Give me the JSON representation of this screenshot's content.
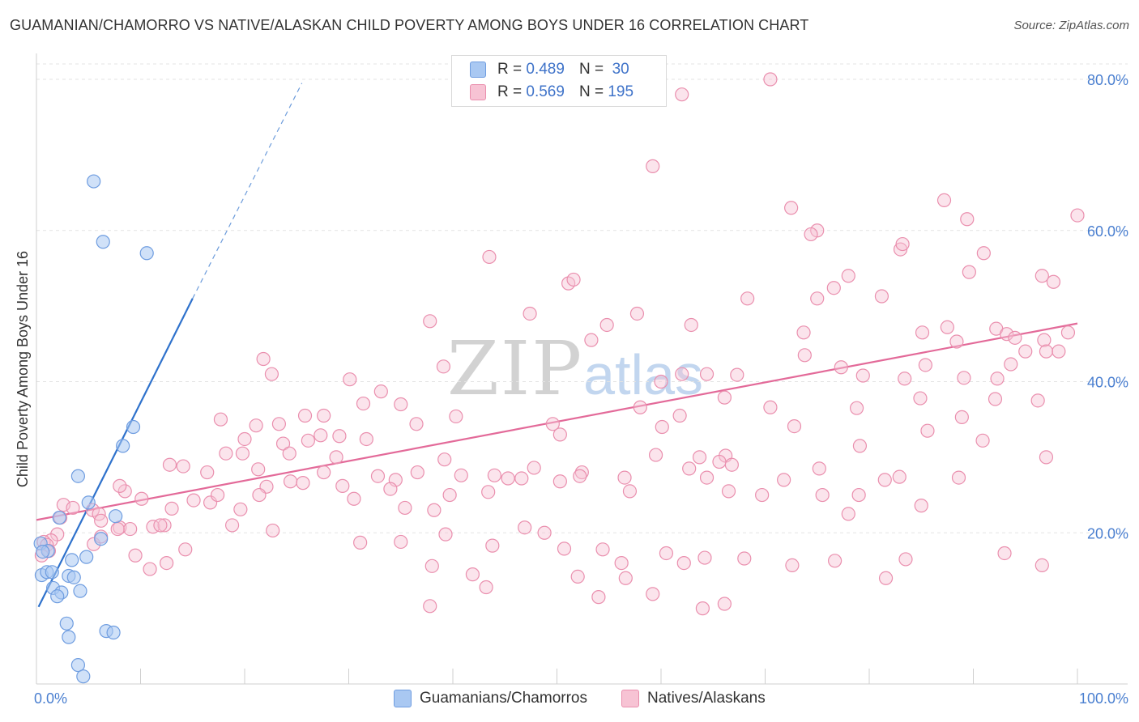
{
  "title": "GUAMANIAN/CHAMORRO VS NATIVE/ALASKAN CHILD POVERTY AMONG BOYS UNDER 16 CORRELATION CHART",
  "source": "Source: ZipAtlas.com",
  "watermark": {
    "zip": "ZIP",
    "atlas": "atlas"
  },
  "legend": {
    "rows": [
      {
        "r_label": "R =",
        "r_value": "0.489",
        "n_label": "N =",
        "n_value": "30"
      },
      {
        "r_label": "R =",
        "r_value": "0.569",
        "n_label": "N =",
        "n_value": "195"
      }
    ]
  },
  "bottom_legend": {
    "series_a": "Guamanians/Chamorros",
    "series_b": "Natives/Alaskans"
  },
  "colors": {
    "blue_fill": "#a9c8f2",
    "blue_stroke": "#6f9de0",
    "blue_line": "#2f72cc",
    "pink_fill": "#f7c3d4",
    "pink_stroke": "#ea8fae",
    "pink_line": "#e36a99",
    "grid": "#e3e3e3",
    "tick_text": "#4a7fd0"
  },
  "chart_data": {
    "type": "scatter",
    "title": "GUAMANIAN/CHAMORRO VS NATIVE/ALASKAN CHILD POVERTY AMONG BOYS UNDER 16 CORRELATION CHART",
    "xlabel": "",
    "ylabel": "Child Poverty Among Boys Under 16",
    "xlim": [
      0,
      100
    ],
    "ylim": [
      0,
      83
    ],
    "y_ticks": [
      20,
      40,
      60,
      80
    ],
    "y_tick_labels": [
      "20.0%",
      "40.0%",
      "60.0%",
      "80.0%"
    ],
    "x_tick_labels": [
      "0.0%",
      "100.0%"
    ],
    "x_minor_ticks": [
      0,
      10,
      20,
      30,
      40,
      50,
      60,
      70,
      80,
      90,
      100
    ],
    "grid": true,
    "series": [
      {
        "name": "Guamanians/Chamorros",
        "r": 0.489,
        "n": 30,
        "trend": {
          "x0": 0.2,
          "y0": 10.2,
          "x1": 15.0,
          "y1": 51.0,
          "dash_to_x": 25.5,
          "dash_to_y": 79.5
        },
        "points": [
          [
            5.5,
            66.5
          ],
          [
            6.4,
            58.5
          ],
          [
            10.6,
            57.0
          ],
          [
            9.3,
            34.0
          ],
          [
            8.3,
            31.5
          ],
          [
            4.0,
            27.5
          ],
          [
            5.0,
            24.0
          ],
          [
            2.2,
            22.0
          ],
          [
            7.6,
            22.2
          ],
          [
            6.2,
            19.2
          ],
          [
            0.4,
            18.6
          ],
          [
            1.1,
            17.6
          ],
          [
            3.4,
            16.4
          ],
          [
            4.8,
            16.8
          ],
          [
            0.5,
            14.4
          ],
          [
            1.0,
            14.8
          ],
          [
            1.5,
            14.8
          ],
          [
            3.1,
            14.3
          ],
          [
            3.6,
            14.1
          ],
          [
            1.6,
            12.7
          ],
          [
            2.4,
            12.1
          ],
          [
            2.0,
            11.6
          ],
          [
            4.2,
            12.3
          ],
          [
            2.9,
            8.0
          ],
          [
            6.7,
            7.0
          ],
          [
            7.4,
            6.8
          ],
          [
            3.1,
            6.2
          ],
          [
            4.0,
            2.5
          ],
          [
            4.5,
            1.0
          ],
          [
            0.6,
            17.5
          ]
        ]
      },
      {
        "name": "Natives/Alaskans",
        "r": 0.569,
        "n": 195,
        "trend": {
          "x0": 0.0,
          "y0": 21.7,
          "x1": 100.0,
          "y1": 47.7
        },
        "points": [
          [
            70.5,
            80.0
          ],
          [
            62.0,
            78.0
          ],
          [
            59.2,
            68.5
          ],
          [
            87.2,
            64.0
          ],
          [
            72.5,
            63.0
          ],
          [
            89.4,
            61.5
          ],
          [
            100.0,
            62.0
          ],
          [
            75.0,
            60.0
          ],
          [
            74.4,
            59.5
          ],
          [
            83.0,
            57.5
          ],
          [
            83.2,
            58.2
          ],
          [
            91.0,
            57.0
          ],
          [
            43.5,
            56.5
          ],
          [
            89.6,
            54.5
          ],
          [
            96.6,
            54.0
          ],
          [
            78.0,
            54.0
          ],
          [
            51.1,
            53.0
          ],
          [
            51.6,
            53.5
          ],
          [
            97.7,
            53.2
          ],
          [
            76.6,
            52.4
          ],
          [
            68.3,
            51.0
          ],
          [
            75.0,
            51.0
          ],
          [
            81.2,
            51.3
          ],
          [
            47.4,
            49.0
          ],
          [
            57.7,
            49.0
          ],
          [
            37.8,
            48.0
          ],
          [
            54.8,
            47.5
          ],
          [
            62.9,
            47.5
          ],
          [
            92.2,
            47.0
          ],
          [
            73.7,
            46.5
          ],
          [
            85.1,
            46.5
          ],
          [
            87.5,
            47.2
          ],
          [
            93.2,
            46.3
          ],
          [
            94.0,
            45.8
          ],
          [
            96.8,
            45.5
          ],
          [
            99.1,
            46.5
          ],
          [
            53.3,
            45.5
          ],
          [
            88.4,
            45.3
          ],
          [
            95.0,
            44.0
          ],
          [
            97.0,
            44.0
          ],
          [
            98.2,
            44.0
          ],
          [
            73.8,
            43.5
          ],
          [
            21.8,
            43.0
          ],
          [
            85.4,
            42.2
          ],
          [
            93.6,
            42.3
          ],
          [
            39.1,
            42.0
          ],
          [
            77.3,
            41.9
          ],
          [
            22.6,
            41.0
          ],
          [
            67.3,
            40.9
          ],
          [
            62.0,
            41.0
          ],
          [
            64.4,
            41.0
          ],
          [
            89.1,
            40.5
          ],
          [
            92.3,
            40.4
          ],
          [
            79.4,
            40.8
          ],
          [
            30.1,
            40.3
          ],
          [
            83.4,
            40.4
          ],
          [
            60.0,
            40.0
          ],
          [
            33.1,
            38.7
          ],
          [
            66.1,
            37.9
          ],
          [
            84.9,
            37.8
          ],
          [
            96.2,
            37.5
          ],
          [
            92.1,
            37.7
          ],
          [
            35.0,
            37.0
          ],
          [
            31.4,
            37.1
          ],
          [
            58.0,
            36.6
          ],
          [
            70.5,
            36.6
          ],
          [
            78.8,
            36.5
          ],
          [
            25.8,
            35.5
          ],
          [
            40.3,
            35.4
          ],
          [
            27.6,
            35.5
          ],
          [
            61.8,
            35.5
          ],
          [
            88.9,
            35.3
          ],
          [
            17.7,
            35.0
          ],
          [
            23.3,
            34.4
          ],
          [
            36.5,
            34.4
          ],
          [
            49.6,
            34.4
          ],
          [
            21.1,
            34.2
          ],
          [
            72.8,
            34.1
          ],
          [
            60.1,
            34.0
          ],
          [
            85.6,
            33.5
          ],
          [
            50.3,
            33.0
          ],
          [
            27.3,
            32.9
          ],
          [
            29.1,
            32.8
          ],
          [
            20.0,
            32.4
          ],
          [
            31.7,
            32.4
          ],
          [
            90.9,
            32.2
          ],
          [
            26.1,
            32.2
          ],
          [
            23.7,
            31.8
          ],
          [
            79.1,
            31.5
          ],
          [
            66.2,
            30.2
          ],
          [
            63.7,
            30.0
          ],
          [
            97.0,
            30.0
          ],
          [
            18.2,
            30.5
          ],
          [
            19.8,
            30.5
          ],
          [
            24.3,
            30.5
          ],
          [
            28.8,
            30.0
          ],
          [
            59.5,
            30.3
          ],
          [
            66.8,
            29.0
          ],
          [
            16.4,
            28.0
          ],
          [
            21.3,
            28.4
          ],
          [
            27.6,
            28.0
          ],
          [
            36.6,
            28.0
          ],
          [
            47.8,
            28.6
          ],
          [
            62.7,
            28.5
          ],
          [
            75.2,
            28.5
          ],
          [
            82.9,
            27.4
          ],
          [
            88.6,
            27.3
          ],
          [
            65.6,
            29.4
          ],
          [
            8.5,
            25.5
          ],
          [
            10.1,
            24.5
          ],
          [
            16.7,
            24.0
          ],
          [
            19.6,
            23.1
          ],
          [
            22.1,
            26.1
          ],
          [
            24.4,
            26.8
          ],
          [
            25.6,
            26.6
          ],
          [
            29.4,
            26.2
          ],
          [
            32.8,
            27.5
          ],
          [
            34.5,
            27.0
          ],
          [
            39.2,
            29.7
          ],
          [
            40.8,
            27.6
          ],
          [
            45.3,
            27.2
          ],
          [
            46.6,
            27.2
          ],
          [
            52.4,
            28.0
          ],
          [
            56.5,
            27.3
          ],
          [
            64.4,
            27.3
          ],
          [
            71.8,
            27.0
          ],
          [
            81.5,
            27.0
          ],
          [
            14.1,
            28.8
          ],
          [
            12.8,
            29.0
          ],
          [
            8.0,
            26.2
          ],
          [
            13.0,
            23.2
          ],
          [
            15.1,
            24.3
          ],
          [
            17.4,
            25.0
          ],
          [
            21.4,
            25.0
          ],
          [
            30.5,
            24.5
          ],
          [
            34.0,
            25.8
          ],
          [
            38.2,
            23.0
          ],
          [
            35.4,
            23.3
          ],
          [
            39.7,
            25.0
          ],
          [
            43.4,
            25.4
          ],
          [
            44.0,
            27.6
          ],
          [
            50.3,
            26.8
          ],
          [
            52.2,
            27.5
          ],
          [
            57.0,
            25.5
          ],
          [
            66.5,
            25.5
          ],
          [
            69.7,
            25.0
          ],
          [
            75.5,
            25.0
          ],
          [
            79.0,
            25.0
          ],
          [
            85.0,
            23.6
          ],
          [
            2.6,
            23.7
          ],
          [
            5.4,
            23.0
          ],
          [
            6.0,
            22.5
          ],
          [
            3.5,
            23.3
          ],
          [
            2.3,
            22.0
          ],
          [
            6.2,
            21.6
          ],
          [
            8.0,
            20.7
          ],
          [
            9.0,
            20.5
          ],
          [
            11.2,
            20.8
          ],
          [
            12.3,
            21.0
          ],
          [
            11.9,
            21.0
          ],
          [
            7.8,
            20.5
          ],
          [
            2.0,
            19.8
          ],
          [
            1.4,
            19.0
          ],
          [
            0.7,
            18.8
          ],
          [
            1.0,
            18.4
          ],
          [
            1.2,
            17.6
          ],
          [
            0.5,
            17.0
          ],
          [
            5.5,
            18.5
          ],
          [
            6.2,
            19.5
          ],
          [
            14.3,
            17.8
          ],
          [
            18.8,
            21.0
          ],
          [
            22.7,
            20.3
          ],
          [
            31.1,
            18.7
          ],
          [
            35.0,
            18.8
          ],
          [
            39.3,
            19.8
          ],
          [
            43.8,
            18.3
          ],
          [
            46.9,
            20.7
          ],
          [
            48.8,
            20.0
          ],
          [
            50.7,
            17.9
          ],
          [
            54.4,
            17.8
          ],
          [
            56.2,
            16.0
          ],
          [
            60.5,
            17.3
          ],
          [
            62.2,
            16.0
          ],
          [
            64.2,
            16.7
          ],
          [
            68.0,
            16.6
          ],
          [
            72.6,
            15.7
          ],
          [
            76.7,
            16.3
          ],
          [
            83.5,
            16.5
          ],
          [
            93.0,
            17.3
          ],
          [
            96.6,
            15.7
          ],
          [
            12.5,
            16.0
          ],
          [
            9.5,
            17.0
          ],
          [
            10.9,
            15.2
          ],
          [
            41.9,
            14.5
          ],
          [
            43.2,
            12.8
          ],
          [
            37.8,
            10.3
          ],
          [
            59.2,
            11.9
          ],
          [
            54.0,
            11.5
          ],
          [
            66.1,
            10.6
          ],
          [
            64.0,
            10.0
          ],
          [
            52.0,
            14.2
          ],
          [
            78.0,
            22.5
          ],
          [
            81.6,
            14.0
          ],
          [
            56.6,
            14.0
          ],
          [
            38.0,
            15.6
          ]
        ]
      }
    ]
  }
}
